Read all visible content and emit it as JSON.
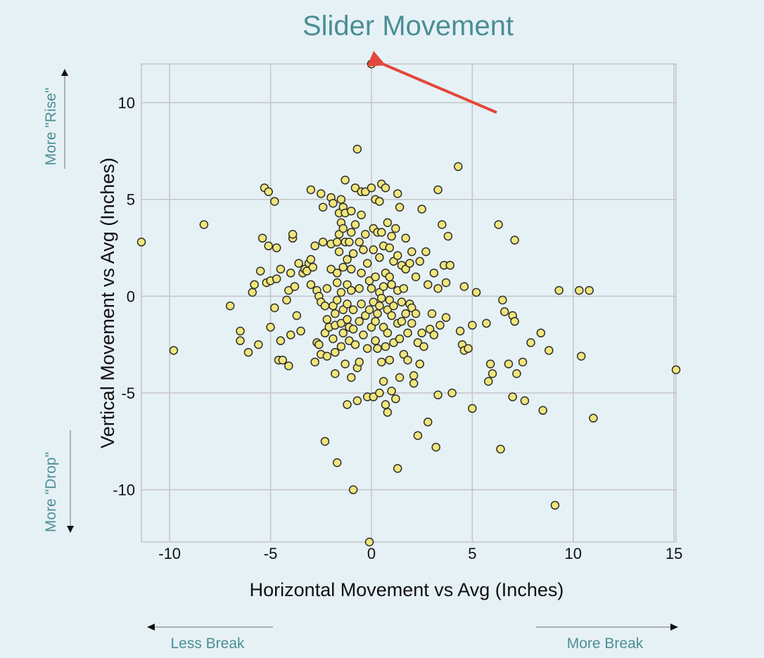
{
  "chart_data": {
    "type": "scatter",
    "title": "Slider Movement",
    "xlabel": "Horizontal Movement vs Avg (Inches)",
    "ylabel": "Vertical Movement vs Avg (Inches)",
    "xlim": [
      -11.4,
      15.1
    ],
    "ylim": [
      -12.7,
      12.0
    ],
    "x_ticks": [
      -10,
      -5,
      0,
      5,
      10,
      15
    ],
    "y_ticks": [
      -10,
      -5,
      0,
      5,
      10
    ],
    "x_tick_labels": [
      "-10",
      "-5",
      "0",
      "5",
      "10",
      "15"
    ],
    "y_tick_labels": [
      "-10",
      "-5",
      "0",
      "5",
      "10"
    ],
    "grid": true,
    "marker_color": "#f0e67a",
    "marker_edge": "#2e2e2e",
    "annotations": {
      "more_rise": "More \"Rise\"",
      "more_drop": "More \"Drop\"",
      "less_break": "Less Break",
      "more_break": "More Break",
      "arrow_color": "#e2473a",
      "arrow_target": [
        0.5,
        12.0
      ]
    },
    "points": [
      [
        -11.4,
        2.8
      ],
      [
        -9.8,
        -2.8
      ],
      [
        -8.3,
        3.7
      ],
      [
        -7.0,
        -0.5
      ],
      [
        -6.5,
        -1.8
      ],
      [
        -6.5,
        -2.3
      ],
      [
        -6.1,
        -2.9
      ],
      [
        -5.9,
        0.2
      ],
      [
        -5.8,
        0.6
      ],
      [
        -5.6,
        -2.5
      ],
      [
        -5.5,
        1.3
      ],
      [
        -5.4,
        3.0
      ],
      [
        -5.3,
        5.6
      ],
      [
        -5.2,
        0.7
      ],
      [
        -5.1,
        5.4
      ],
      [
        -5.1,
        2.6
      ],
      [
        -5.0,
        -1.6
      ],
      [
        -5.0,
        0.8
      ],
      [
        -4.8,
        4.9
      ],
      [
        -4.8,
        -0.6
      ],
      [
        -4.7,
        2.5
      ],
      [
        -4.7,
        0.9
      ],
      [
        -4.6,
        -3.3
      ],
      [
        -4.5,
        -2.3
      ],
      [
        -4.5,
        1.4
      ],
      [
        -4.4,
        -3.3
      ],
      [
        -4.2,
        -0.2
      ],
      [
        -4.1,
        0.3
      ],
      [
        -4.1,
        -3.6
      ],
      [
        -4.0,
        -2.0
      ],
      [
        -4.0,
        1.2
      ],
      [
        -3.9,
        3.0
      ],
      [
        -3.9,
        3.2
      ],
      [
        -3.8,
        0.5
      ],
      [
        -3.7,
        -1.0
      ],
      [
        -3.6,
        1.7
      ],
      [
        -3.5,
        -1.8
      ],
      [
        -3.4,
        1.2
      ],
      [
        -3.3,
        1.4
      ],
      [
        -3.2,
        1.3
      ],
      [
        -3.1,
        1.7
      ],
      [
        -3.0,
        0.6
      ],
      [
        -3.0,
        1.9
      ],
      [
        -3.0,
        5.5
      ],
      [
        -2.9,
        1.5
      ],
      [
        -2.8,
        2.6
      ],
      [
        -2.8,
        -3.4
      ],
      [
        -2.7,
        -2.4
      ],
      [
        -2.7,
        0.3
      ],
      [
        -2.6,
        0.0
      ],
      [
        -2.6,
        -2.5
      ],
      [
        -2.5,
        5.3
      ],
      [
        -2.5,
        -0.3
      ],
      [
        -2.5,
        -3.0
      ],
      [
        -2.4,
        4.6
      ],
      [
        -2.4,
        2.8
      ],
      [
        -2.3,
        -0.5
      ],
      [
        -2.3,
        -1.9
      ],
      [
        -2.3,
        -7.5
      ],
      [
        -2.2,
        0.4
      ],
      [
        -2.2,
        -1.2
      ],
      [
        -2.2,
        -3.1
      ],
      [
        -2.1,
        -1.6
      ],
      [
        -2.0,
        5.1
      ],
      [
        -2.0,
        2.7
      ],
      [
        -2.0,
        1.4
      ],
      [
        -1.9,
        -0.5
      ],
      [
        -1.9,
        -2.2
      ],
      [
        -1.9,
        4.8
      ],
      [
        -1.8,
        -0.9
      ],
      [
        -1.8,
        -1.5
      ],
      [
        -1.8,
        -2.9
      ],
      [
        -1.8,
        -4.0
      ],
      [
        -1.7,
        1.2
      ],
      [
        -1.7,
        2.8
      ],
      [
        -1.7,
        0.7
      ],
      [
        -1.7,
        -0.2
      ],
      [
        -1.7,
        -8.6
      ],
      [
        -1.6,
        3.2
      ],
      [
        -1.6,
        4.3
      ],
      [
        -1.6,
        2.3
      ],
      [
        -1.5,
        5.0
      ],
      [
        -1.5,
        3.8
      ],
      [
        -1.5,
        0.2
      ],
      [
        -1.5,
        -1.4
      ],
      [
        -1.5,
        -2.6
      ],
      [
        -1.4,
        4.6
      ],
      [
        -1.4,
        3.5
      ],
      [
        -1.4,
        1.5
      ],
      [
        -1.4,
        -0.7
      ],
      [
        -1.4,
        -1.9
      ],
      [
        -1.3,
        -3.5
      ],
      [
        -1.3,
        2.8
      ],
      [
        -1.3,
        6.0
      ],
      [
        -1.3,
        4.3
      ],
      [
        -1.2,
        -0.4
      ],
      [
        -1.2,
        1.9
      ],
      [
        -1.2,
        0.6
      ],
      [
        -1.2,
        -1.2
      ],
      [
        -1.2,
        -5.6
      ],
      [
        -1.1,
        2.8
      ],
      [
        -1.1,
        -2.3
      ],
      [
        -1.1,
        -1.6
      ],
      [
        -1.0,
        4.4
      ],
      [
        -1.0,
        3.3
      ],
      [
        -1.0,
        1.4
      ],
      [
        -1.0,
        0.3
      ],
      [
        -1.0,
        -4.2
      ],
      [
        -0.9,
        -10.0
      ],
      [
        -0.9,
        2.2
      ],
      [
        -0.9,
        -0.7
      ],
      [
        -0.9,
        -1.7
      ],
      [
        -0.8,
        -2.5
      ],
      [
        -0.8,
        5.6
      ],
      [
        -0.8,
        3.7
      ],
      [
        -0.7,
        7.6
      ],
      [
        -0.7,
        -3.7
      ],
      [
        -0.7,
        -5.4
      ],
      [
        -0.6,
        -1.3
      ],
      [
        -0.6,
        0.4
      ],
      [
        -0.6,
        2.8
      ],
      [
        -0.6,
        -3.4
      ],
      [
        -0.5,
        5.4
      ],
      [
        -0.5,
        4.2
      ],
      [
        -0.5,
        1.2
      ],
      [
        -0.5,
        -0.4
      ],
      [
        -0.4,
        -2.0
      ],
      [
        -0.4,
        2.4
      ],
      [
        -0.3,
        5.4
      ],
      [
        -0.3,
        3.2
      ],
      [
        -0.3,
        -1.0
      ],
      [
        -0.2,
        1.7
      ],
      [
        -0.2,
        -2.7
      ],
      [
        -0.2,
        -5.2
      ],
      [
        -0.1,
        0.8
      ],
      [
        -0.1,
        -0.7
      ],
      [
        -0.1,
        -12.7
      ],
      [
        0.0,
        5.6
      ],
      [
        0.0,
        -1.6
      ],
      [
        0.0,
        0.4
      ],
      [
        0.1,
        3.5
      ],
      [
        0.1,
        2.4
      ],
      [
        0.1,
        -0.3
      ],
      [
        0.1,
        -5.2
      ],
      [
        0.2,
        5.0
      ],
      [
        0.2,
        1.0
      ],
      [
        0.2,
        -1.3
      ],
      [
        0.2,
        -2.3
      ],
      [
        0.3,
        3.3
      ],
      [
        0.3,
        -0.9
      ],
      [
        0.3,
        -2.7
      ],
      [
        0.4,
        4.9
      ],
      [
        0.4,
        2.0
      ],
      [
        0.4,
        0.2
      ],
      [
        0.4,
        -0.5
      ],
      [
        0.4,
        -5.0
      ],
      [
        0.5,
        5.8
      ],
      [
        0.5,
        3.3
      ],
      [
        0.5,
        -0.1
      ],
      [
        0.5,
        -3.4
      ],
      [
        0.6,
        2.6
      ],
      [
        0.6,
        0.5
      ],
      [
        0.6,
        -1.6
      ],
      [
        0.6,
        -4.4
      ],
      [
        0.7,
        5.6
      ],
      [
        0.7,
        1.2
      ],
      [
        0.7,
        -2.6
      ],
      [
        0.7,
        -5.6
      ],
      [
        0.8,
        3.8
      ],
      [
        0.8,
        -0.7
      ],
      [
        0.8,
        -1.9
      ],
      [
        0.8,
        -6.0
      ],
      [
        0.9,
        2.5
      ],
      [
        0.9,
        1.0
      ],
      [
        0.9,
        -0.2
      ],
      [
        0.9,
        -3.3
      ],
      [
        1.0,
        3.1
      ],
      [
        1.0,
        0.6
      ],
      [
        1.0,
        -1.0
      ],
      [
        1.0,
        -4.9
      ],
      [
        1.1,
        -2.4
      ],
      [
        1.1,
        -0.5
      ],
      [
        1.1,
        1.8
      ],
      [
        1.2,
        3.5
      ],
      [
        1.2,
        -5.3
      ],
      [
        1.3,
        -8.9
      ],
      [
        1.3,
        5.3
      ],
      [
        1.3,
        2.1
      ],
      [
        1.3,
        0.3
      ],
      [
        1.3,
        -1.4
      ],
      [
        1.4,
        -4.2
      ],
      [
        1.4,
        4.6
      ],
      [
        1.4,
        -2.2
      ],
      [
        1.5,
        1.6
      ],
      [
        1.5,
        -0.3
      ],
      [
        1.5,
        -1.3
      ],
      [
        1.6,
        -3.0
      ],
      [
        1.6,
        0.4
      ],
      [
        1.7,
        1.4
      ],
      [
        1.7,
        -0.9
      ],
      [
        1.7,
        3.0
      ],
      [
        1.8,
        -1.9
      ],
      [
        1.8,
        -3.3
      ],
      [
        1.9,
        1.7
      ],
      [
        1.9,
        -0.4
      ],
      [
        2.0,
        -0.6
      ],
      [
        2.0,
        -1.4
      ],
      [
        2.0,
        2.3
      ],
      [
        2.1,
        -4.1
      ],
      [
        2.1,
        -4.5
      ],
      [
        2.2,
        1.0
      ],
      [
        2.2,
        -0.9
      ],
      [
        2.3,
        -2.4
      ],
      [
        2.3,
        -7.2
      ],
      [
        2.4,
        1.8
      ],
      [
        2.4,
        -3.5
      ],
      [
        2.5,
        4.5
      ],
      [
        2.5,
        -1.9
      ],
      [
        2.6,
        -2.6
      ],
      [
        2.7,
        2.3
      ],
      [
        2.8,
        -6.5
      ],
      [
        2.8,
        0.6
      ],
      [
        2.9,
        -1.7
      ],
      [
        3.0,
        -0.9
      ],
      [
        3.1,
        1.2
      ],
      [
        3.1,
        -2.0
      ],
      [
        3.2,
        -7.8
      ],
      [
        3.3,
        5.5
      ],
      [
        3.3,
        -5.1
      ],
      [
        3.3,
        0.4
      ],
      [
        3.4,
        -1.5
      ],
      [
        3.5,
        3.7
      ],
      [
        3.6,
        1.6
      ],
      [
        3.7,
        0.7
      ],
      [
        3.7,
        -1.1
      ],
      [
        3.8,
        3.1
      ],
      [
        3.9,
        1.6
      ],
      [
        4.0,
        -5.0
      ],
      [
        4.3,
        6.7
      ],
      [
        4.4,
        -1.8
      ],
      [
        4.5,
        -2.5
      ],
      [
        4.6,
        0.5
      ],
      [
        4.6,
        -2.8
      ],
      [
        4.8,
        -2.7
      ],
      [
        5.0,
        -1.5
      ],
      [
        5.0,
        -5.8
      ],
      [
        5.2,
        0.2
      ],
      [
        5.7,
        -1.4
      ],
      [
        5.8,
        -4.4
      ],
      [
        5.9,
        -3.5
      ],
      [
        6.0,
        -4.0
      ],
      [
        6.3,
        3.7
      ],
      [
        6.4,
        -7.9
      ],
      [
        6.5,
        -0.2
      ],
      [
        6.6,
        -0.8
      ],
      [
        6.8,
        -3.5
      ],
      [
        7.0,
        -1.0
      ],
      [
        7.0,
        -5.2
      ],
      [
        7.1,
        2.9
      ],
      [
        7.1,
        -1.3
      ],
      [
        7.2,
        -4.0
      ],
      [
        7.5,
        -3.4
      ],
      [
        7.6,
        -5.4
      ],
      [
        7.9,
        -2.4
      ],
      [
        8.4,
        -1.9
      ],
      [
        8.5,
        -5.9
      ],
      [
        8.8,
        -2.8
      ],
      [
        9.1,
        -10.8
      ],
      [
        9.3,
        0.3
      ],
      [
        10.3,
        0.3
      ],
      [
        10.4,
        -3.1
      ],
      [
        10.8,
        0.3
      ],
      [
        11.0,
        -6.3
      ],
      [
        15.1,
        -3.8
      ],
      [
        0.0,
        12.0
      ]
    ]
  }
}
